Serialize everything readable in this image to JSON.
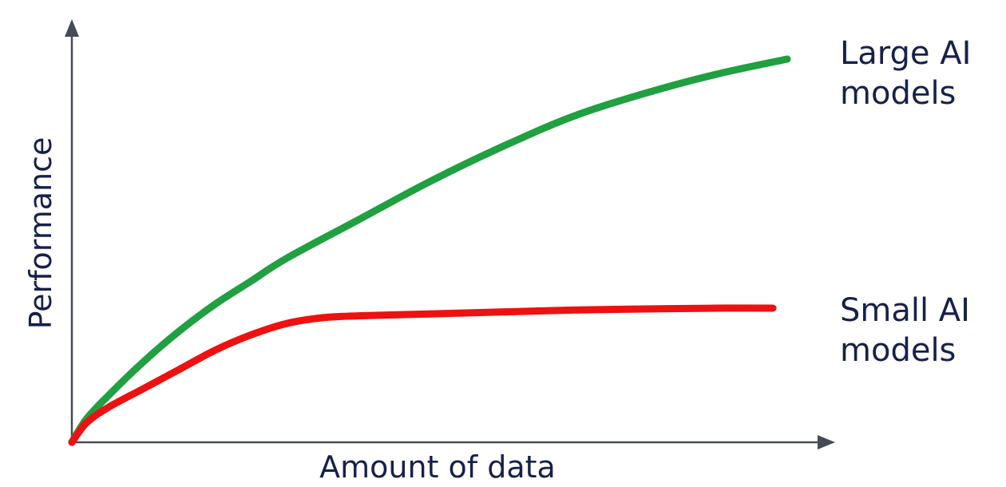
{
  "chart_data": {
    "type": "line",
    "title": "",
    "xlabel": "Amount of data",
    "ylabel": "Performance",
    "xlim": [
      0,
      100
    ],
    "ylim": [
      0,
      100
    ],
    "grid": false,
    "axis_ticks": false,
    "legend": "direct labels at right end of each line",
    "series": [
      {
        "name_lines": [
          "Large AI",
          "models"
        ],
        "color": "#20a040",
        "x": [
          0,
          2,
          5,
          10,
          15,
          20,
          25,
          30,
          40,
          50,
          60,
          70,
          80,
          90,
          100
        ],
        "y": [
          0,
          6,
          12,
          21,
          29,
          36,
          42,
          48,
          58,
          68,
          77,
          85,
          91,
          96,
          100
        ]
      },
      {
        "name_lines": [
          "Small AI",
          "models"
        ],
        "color": "#ee1111",
        "x": [
          0,
          2,
          5,
          10,
          15,
          20,
          25,
          30,
          35,
          40,
          50,
          60,
          70,
          80,
          90,
          98
        ],
        "y": [
          0,
          5,
          9,
          14,
          19,
          24,
          28,
          31,
          32.5,
          33,
          33.5,
          34,
          34.5,
          34.8,
          35,
          35
        ]
      }
    ]
  }
}
